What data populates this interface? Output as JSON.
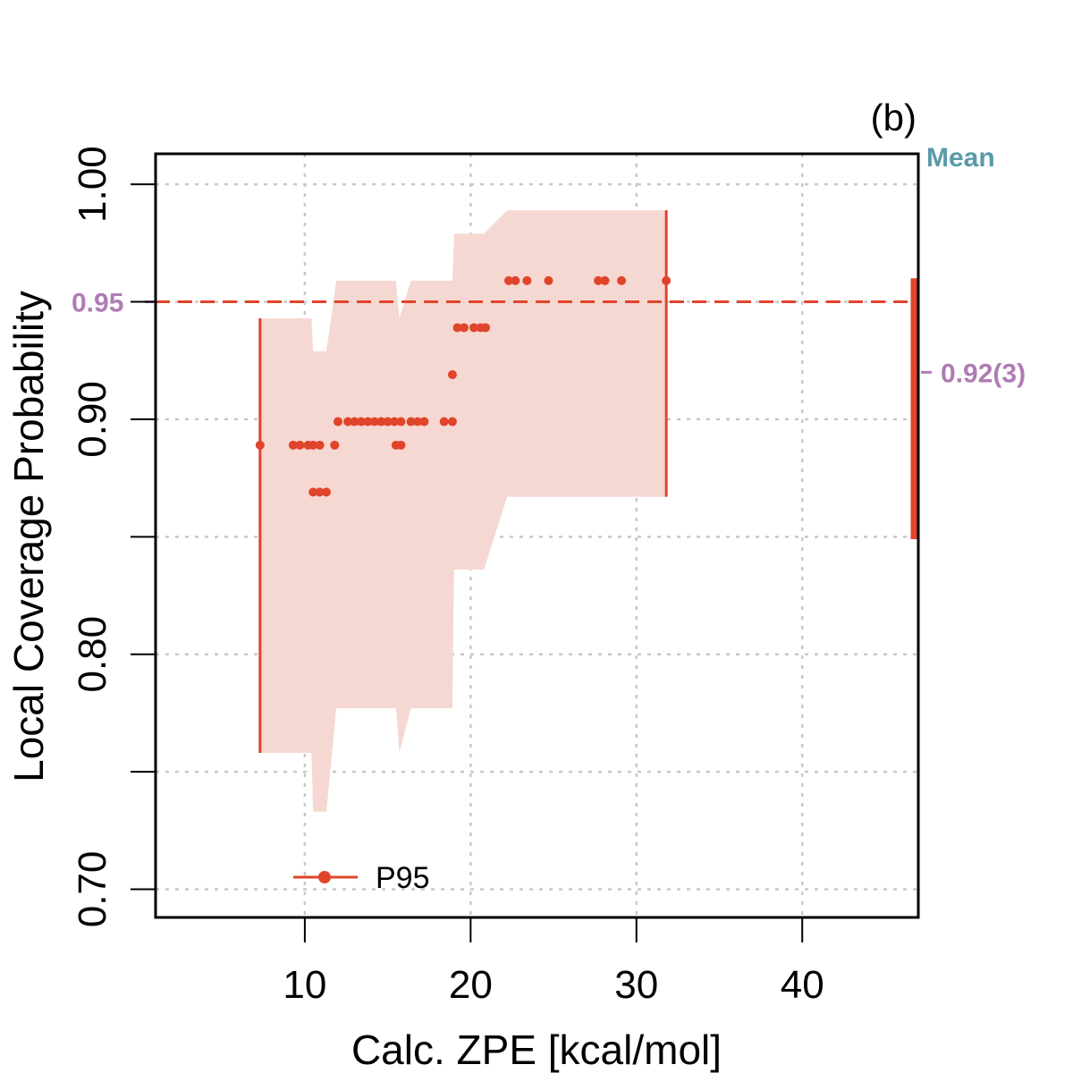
{
  "chart_data": {
    "type": "scatter",
    "panel_label": "(b)",
    "xlabel": "Calc. ZPE [kcal/mol]",
    "ylabel": "Local Coverage Probability",
    "xlim": [
      1,
      47
    ],
    "ylim": [
      0.688,
      1.013
    ],
    "x_ticks": [
      10,
      20,
      30,
      40
    ],
    "x_tick_labels": [
      "10",
      "20",
      "30",
      "40"
    ],
    "y_ticks": [
      0.7,
      0.75,
      0.8,
      0.85,
      0.9,
      0.95,
      1.0
    ],
    "y_tick_labels": [
      "0.70",
      "",
      "0.80",
      "",
      "0.90",
      "",
      "1.00"
    ],
    "grid": true,
    "colors": {
      "series": "#E0442A",
      "band": "#F6D8D2",
      "target": "#B07CB4",
      "mean_label": "#5A9AA8",
      "grid": "#C8C8C8",
      "axis": "#000000"
    },
    "target": {
      "value": 0.95,
      "label": "0.95"
    },
    "mean": {
      "title": "Mean",
      "value": 0.92,
      "label": "0.92(3)",
      "low": 0.849,
      "high": 0.96
    },
    "legend": {
      "label": "P95",
      "position": "bottom-left"
    },
    "series": [
      {
        "name": "P95",
        "intervals": [
          {
            "x": 7.3,
            "y": 0.889,
            "low": 0.758,
            "high": 0.943
          },
          {
            "x": 31.8,
            "y": 0.959,
            "low": 0.867,
            "high": 0.989
          }
        ],
        "points": [
          {
            "x": 7.3,
            "y": 0.889
          },
          {
            "x": 9.3,
            "y": 0.889
          },
          {
            "x": 9.7,
            "y": 0.889
          },
          {
            "x": 10.2,
            "y": 0.889
          },
          {
            "x": 10.5,
            "y": 0.889
          },
          {
            "x": 10.9,
            "y": 0.889
          },
          {
            "x": 10.5,
            "y": 0.869
          },
          {
            "x": 10.9,
            "y": 0.869
          },
          {
            "x": 11.3,
            "y": 0.869
          },
          {
            "x": 11.8,
            "y": 0.889
          },
          {
            "x": 15.5,
            "y": 0.889
          },
          {
            "x": 15.8,
            "y": 0.889
          },
          {
            "x": 12.0,
            "y": 0.899
          },
          {
            "x": 12.6,
            "y": 0.899
          },
          {
            "x": 13.0,
            "y": 0.899
          },
          {
            "x": 13.4,
            "y": 0.899
          },
          {
            "x": 13.8,
            "y": 0.899
          },
          {
            "x": 14.2,
            "y": 0.899
          },
          {
            "x": 14.6,
            "y": 0.899
          },
          {
            "x": 15.0,
            "y": 0.899
          },
          {
            "x": 15.4,
            "y": 0.899
          },
          {
            "x": 15.8,
            "y": 0.899
          },
          {
            "x": 16.4,
            "y": 0.899
          },
          {
            "x": 16.8,
            "y": 0.899
          },
          {
            "x": 17.2,
            "y": 0.899
          },
          {
            "x": 18.4,
            "y": 0.899
          },
          {
            "x": 18.9,
            "y": 0.899
          },
          {
            "x": 18.9,
            "y": 0.919
          },
          {
            "x": 19.2,
            "y": 0.939
          },
          {
            "x": 19.6,
            "y": 0.939
          },
          {
            "x": 20.2,
            "y": 0.939
          },
          {
            "x": 20.6,
            "y": 0.939
          },
          {
            "x": 20.9,
            "y": 0.939
          },
          {
            "x": 22.3,
            "y": 0.959
          },
          {
            "x": 22.7,
            "y": 0.959
          },
          {
            "x": 23.4,
            "y": 0.959
          },
          {
            "x": 24.7,
            "y": 0.959
          },
          {
            "x": 27.7,
            "y": 0.959
          },
          {
            "x": 28.1,
            "y": 0.959
          },
          {
            "x": 29.1,
            "y": 0.959
          },
          {
            "x": 31.8,
            "y": 0.959
          }
        ],
        "band": [
          {
            "x": 7.3,
            "low": 0.758,
            "high": 0.943
          },
          {
            "x": 10.4,
            "low": 0.758,
            "high": 0.943
          },
          {
            "x": 10.5,
            "low": 0.733,
            "high": 0.929
          },
          {
            "x": 11.3,
            "low": 0.733,
            "high": 0.929
          },
          {
            "x": 11.9,
            "low": 0.777,
            "high": 0.959
          },
          {
            "x": 15.5,
            "low": 0.777,
            "high": 0.959
          },
          {
            "x": 15.7,
            "low": 0.758,
            "high": 0.943
          },
          {
            "x": 16.4,
            "low": 0.777,
            "high": 0.959
          },
          {
            "x": 18.9,
            "low": 0.777,
            "high": 0.959
          },
          {
            "x": 19.0,
            "low": 0.836,
            "high": 0.979
          },
          {
            "x": 20.8,
            "low": 0.836,
            "high": 0.979
          },
          {
            "x": 22.2,
            "low": 0.867,
            "high": 0.989
          },
          {
            "x": 31.8,
            "low": 0.867,
            "high": 0.989
          }
        ]
      }
    ]
  }
}
